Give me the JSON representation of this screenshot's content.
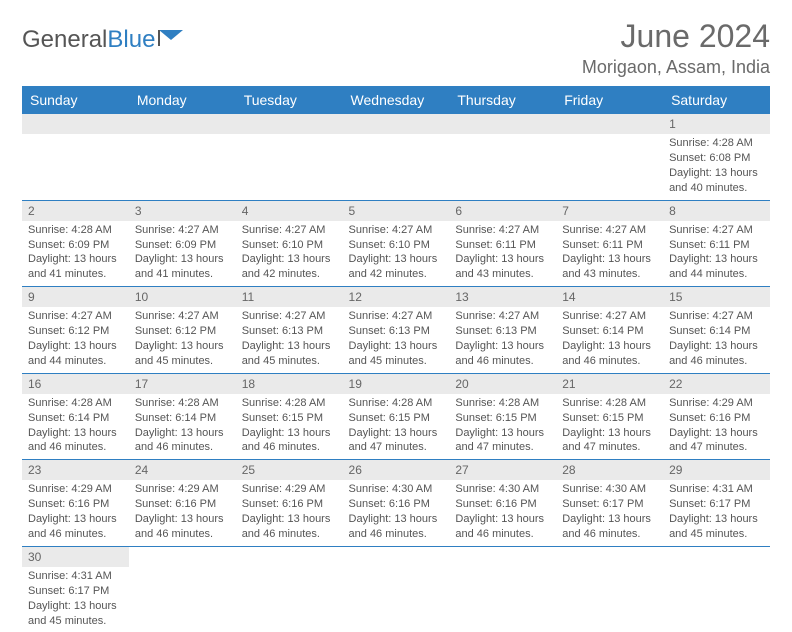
{
  "logo": {
    "text1": "General",
    "text2": "Blue"
  },
  "title": "June 2024",
  "location": "Morigaon, Assam, India",
  "colors": {
    "header_bg": "#2f7fc2",
    "header_text": "#ffffff",
    "daynum_bg": "#eaeaea",
    "row_border": "#2f7fc2",
    "text": "#555555",
    "title_text": "#6a6a6a"
  },
  "weekdays": [
    "Sunday",
    "Monday",
    "Tuesday",
    "Wednesday",
    "Thursday",
    "Friday",
    "Saturday"
  ],
  "weeks": [
    [
      null,
      null,
      null,
      null,
      null,
      null,
      {
        "n": "1",
        "sunrise": "Sunrise: 4:28 AM",
        "sunset": "Sunset: 6:08 PM",
        "daylight": "Daylight: 13 hours and 40 minutes."
      }
    ],
    [
      {
        "n": "2",
        "sunrise": "Sunrise: 4:28 AM",
        "sunset": "Sunset: 6:09 PM",
        "daylight": "Daylight: 13 hours and 41 minutes."
      },
      {
        "n": "3",
        "sunrise": "Sunrise: 4:27 AM",
        "sunset": "Sunset: 6:09 PM",
        "daylight": "Daylight: 13 hours and 41 minutes."
      },
      {
        "n": "4",
        "sunrise": "Sunrise: 4:27 AM",
        "sunset": "Sunset: 6:10 PM",
        "daylight": "Daylight: 13 hours and 42 minutes."
      },
      {
        "n": "5",
        "sunrise": "Sunrise: 4:27 AM",
        "sunset": "Sunset: 6:10 PM",
        "daylight": "Daylight: 13 hours and 42 minutes."
      },
      {
        "n": "6",
        "sunrise": "Sunrise: 4:27 AM",
        "sunset": "Sunset: 6:11 PM",
        "daylight": "Daylight: 13 hours and 43 minutes."
      },
      {
        "n": "7",
        "sunrise": "Sunrise: 4:27 AM",
        "sunset": "Sunset: 6:11 PM",
        "daylight": "Daylight: 13 hours and 43 minutes."
      },
      {
        "n": "8",
        "sunrise": "Sunrise: 4:27 AM",
        "sunset": "Sunset: 6:11 PM",
        "daylight": "Daylight: 13 hours and 44 minutes."
      }
    ],
    [
      {
        "n": "9",
        "sunrise": "Sunrise: 4:27 AM",
        "sunset": "Sunset: 6:12 PM",
        "daylight": "Daylight: 13 hours and 44 minutes."
      },
      {
        "n": "10",
        "sunrise": "Sunrise: 4:27 AM",
        "sunset": "Sunset: 6:12 PM",
        "daylight": "Daylight: 13 hours and 45 minutes."
      },
      {
        "n": "11",
        "sunrise": "Sunrise: 4:27 AM",
        "sunset": "Sunset: 6:13 PM",
        "daylight": "Daylight: 13 hours and 45 minutes."
      },
      {
        "n": "12",
        "sunrise": "Sunrise: 4:27 AM",
        "sunset": "Sunset: 6:13 PM",
        "daylight": "Daylight: 13 hours and 45 minutes."
      },
      {
        "n": "13",
        "sunrise": "Sunrise: 4:27 AM",
        "sunset": "Sunset: 6:13 PM",
        "daylight": "Daylight: 13 hours and 46 minutes."
      },
      {
        "n": "14",
        "sunrise": "Sunrise: 4:27 AM",
        "sunset": "Sunset: 6:14 PM",
        "daylight": "Daylight: 13 hours and 46 minutes."
      },
      {
        "n": "15",
        "sunrise": "Sunrise: 4:27 AM",
        "sunset": "Sunset: 6:14 PM",
        "daylight": "Daylight: 13 hours and 46 minutes."
      }
    ],
    [
      {
        "n": "16",
        "sunrise": "Sunrise: 4:28 AM",
        "sunset": "Sunset: 6:14 PM",
        "daylight": "Daylight: 13 hours and 46 minutes."
      },
      {
        "n": "17",
        "sunrise": "Sunrise: 4:28 AM",
        "sunset": "Sunset: 6:14 PM",
        "daylight": "Daylight: 13 hours and 46 minutes."
      },
      {
        "n": "18",
        "sunrise": "Sunrise: 4:28 AM",
        "sunset": "Sunset: 6:15 PM",
        "daylight": "Daylight: 13 hours and 46 minutes."
      },
      {
        "n": "19",
        "sunrise": "Sunrise: 4:28 AM",
        "sunset": "Sunset: 6:15 PM",
        "daylight": "Daylight: 13 hours and 47 minutes."
      },
      {
        "n": "20",
        "sunrise": "Sunrise: 4:28 AM",
        "sunset": "Sunset: 6:15 PM",
        "daylight": "Daylight: 13 hours and 47 minutes."
      },
      {
        "n": "21",
        "sunrise": "Sunrise: 4:28 AM",
        "sunset": "Sunset: 6:15 PM",
        "daylight": "Daylight: 13 hours and 47 minutes."
      },
      {
        "n": "22",
        "sunrise": "Sunrise: 4:29 AM",
        "sunset": "Sunset: 6:16 PM",
        "daylight": "Daylight: 13 hours and 47 minutes."
      }
    ],
    [
      {
        "n": "23",
        "sunrise": "Sunrise: 4:29 AM",
        "sunset": "Sunset: 6:16 PM",
        "daylight": "Daylight: 13 hours and 46 minutes."
      },
      {
        "n": "24",
        "sunrise": "Sunrise: 4:29 AM",
        "sunset": "Sunset: 6:16 PM",
        "daylight": "Daylight: 13 hours and 46 minutes."
      },
      {
        "n": "25",
        "sunrise": "Sunrise: 4:29 AM",
        "sunset": "Sunset: 6:16 PM",
        "daylight": "Daylight: 13 hours and 46 minutes."
      },
      {
        "n": "26",
        "sunrise": "Sunrise: 4:30 AM",
        "sunset": "Sunset: 6:16 PM",
        "daylight": "Daylight: 13 hours and 46 minutes."
      },
      {
        "n": "27",
        "sunrise": "Sunrise: 4:30 AM",
        "sunset": "Sunset: 6:16 PM",
        "daylight": "Daylight: 13 hours and 46 minutes."
      },
      {
        "n": "28",
        "sunrise": "Sunrise: 4:30 AM",
        "sunset": "Sunset: 6:17 PM",
        "daylight": "Daylight: 13 hours and 46 minutes."
      },
      {
        "n": "29",
        "sunrise": "Sunrise: 4:31 AM",
        "sunset": "Sunset: 6:17 PM",
        "daylight": "Daylight: 13 hours and 45 minutes."
      }
    ],
    [
      {
        "n": "30",
        "sunrise": "Sunrise: 4:31 AM",
        "sunset": "Sunset: 6:17 PM",
        "daylight": "Daylight: 13 hours and 45 minutes."
      },
      null,
      null,
      null,
      null,
      null,
      null
    ]
  ]
}
